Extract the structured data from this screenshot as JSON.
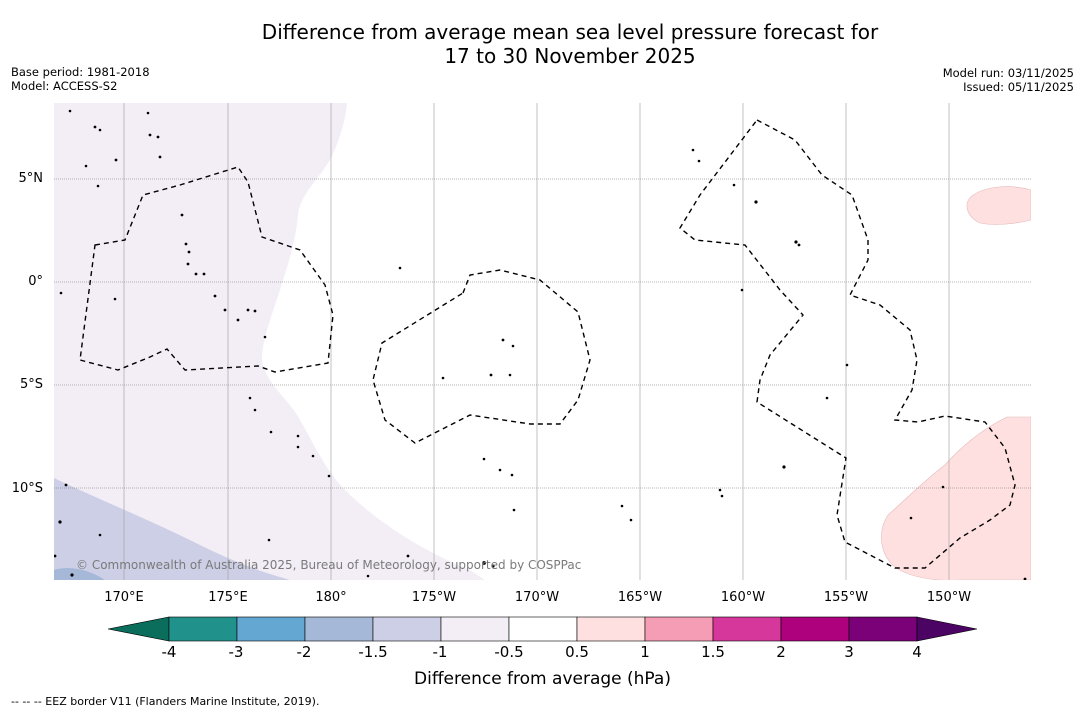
{
  "title_line1": "Difference from average mean sea level pressure forecast for",
  "title_line2": "17 to 30 November 2025",
  "meta_left": {
    "base_period": "Base period: 1981-2018",
    "model": "Model: ACCESS-S2"
  },
  "meta_right": {
    "model_run": "Model run: 03/11/2025",
    "issued": "Issued: 05/11/2025"
  },
  "map": {
    "lat_labels": [
      "5°N",
      "0°",
      "5°S",
      "10°S"
    ],
    "lon_labels": [
      "170°E",
      "175°E",
      "180°",
      "175°W",
      "170°W",
      "165°W",
      "160°W",
      "155°W",
      "150°W"
    ],
    "copyright": "© Commonwealth of Australia 2025, Bureau of Meteorology, supported by COSPPac"
  },
  "colorbar": {
    "title": "Difference from average (hPa)",
    "ticks": [
      "-4",
      "-3",
      "-2",
      "-1.5",
      "-1",
      "-0.5",
      "0.5",
      "1",
      "1.5",
      "2",
      "3",
      "4"
    ],
    "colors": {
      "below": "#0b6d5c",
      "bins": [
        "#21918c",
        "#64a7d3",
        "#a5b8d8",
        "#cdcfe6",
        "#f3eef6",
        "#ffffff",
        "#fde0df",
        "#f59db4",
        "#d6379a",
        "#ad017e",
        "#7a0177"
      ],
      "above": "#4b0364"
    }
  },
  "footer": "--  --  -- EEZ border V11 (Flanders Marine Institute, 2019)."
}
